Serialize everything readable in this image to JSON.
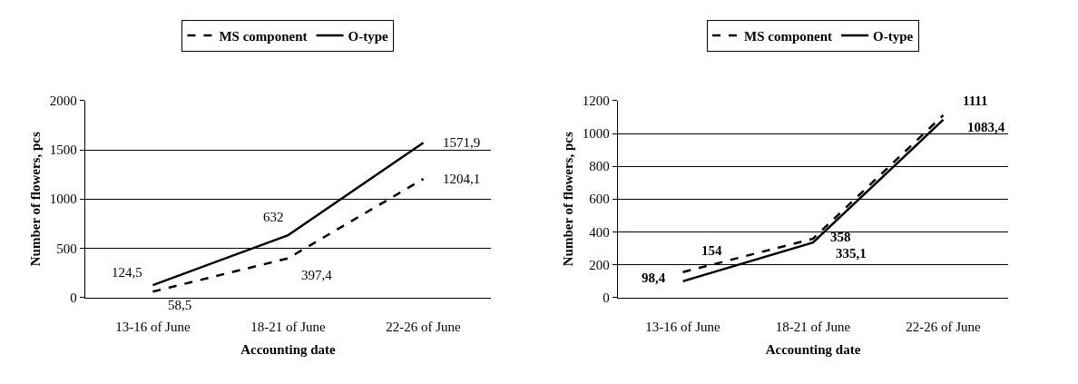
{
  "chart_data": [
    {
      "type": "line",
      "xlabel": "Accounting date",
      "ylabel": "Number of flowers, pcs",
      "categories": [
        "13-16 of June",
        "18-21 of June",
        "22-26 of June"
      ],
      "series": [
        {
          "name": "MS component",
          "color": "#000000",
          "line_style": "dashed",
          "values": [
            58.5,
            397.4,
            1204.1
          ],
          "value_labels": [
            "58,5",
            "397,4",
            "1204,1"
          ]
        },
        {
          "name": "O-type",
          "color": "#000000",
          "line_style": "solid",
          "values": [
            124.5,
            632,
            1571.9
          ],
          "value_labels": [
            "124,5",
            "632",
            "1571,9"
          ]
        }
      ],
      "ylim": [
        0,
        2000
      ],
      "yticks": [
        0,
        500,
        1000,
        1500,
        2000
      ],
      "grid": "y",
      "legend": "top",
      "marker": "none"
    },
    {
      "type": "line",
      "xlabel": "Accounting date",
      "ylabel": "Number of flowers, pcs",
      "categories": [
        "13-16 of June",
        "18-21 of June",
        "22-26 of June"
      ],
      "series": [
        {
          "name": "MS component",
          "color": "#000000",
          "line_style": "dashed",
          "values": [
            154,
            358,
            1111
          ],
          "value_labels": [
            "154",
            "358",
            "1111"
          ]
        },
        {
          "name": "O-type",
          "color": "#000000",
          "line_style": "solid",
          "values": [
            98.4,
            335.1,
            1083.4
          ],
          "value_labels": [
            "98,4",
            "335,1",
            "1083,4"
          ]
        }
      ],
      "ylim": [
        0,
        1200
      ],
      "yticks": [
        0,
        200,
        400,
        600,
        800,
        1000,
        1200
      ],
      "grid": "y",
      "legend": "top",
      "marker": "none"
    }
  ]
}
